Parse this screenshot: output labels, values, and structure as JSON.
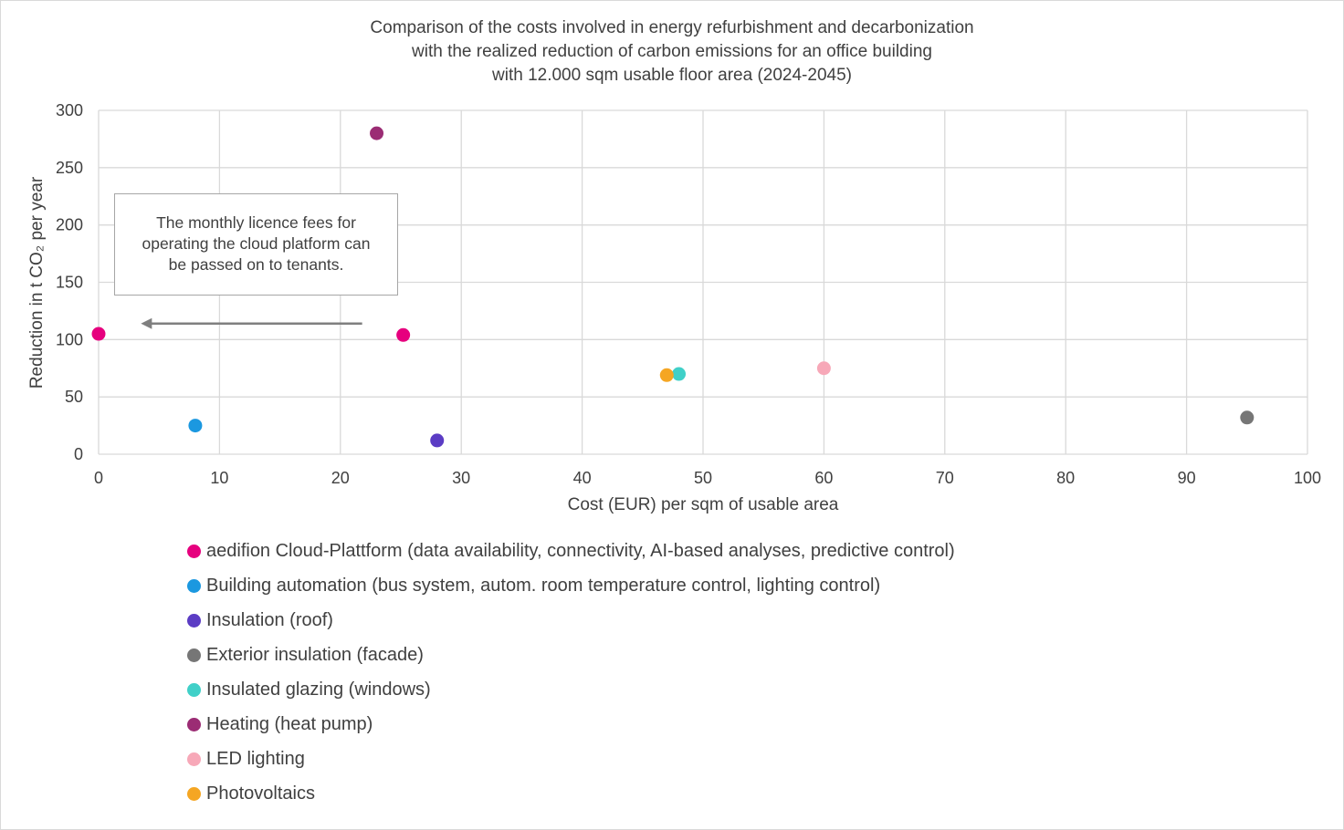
{
  "chart_data": {
    "type": "scatter",
    "title_lines": [
      "Comparison of the costs involved in energy refurbishment and decarbonization",
      "with the realized reduction of carbon emissions for an office building",
      "with 12.000 sqm usable floor area (2024-2045)"
    ],
    "xlabel": "Cost (EUR) per sqm of usable area",
    "ylabel": "Reduction in t CO₂ per year",
    "xlim": [
      0,
      100
    ],
    "ylim": [
      0,
      300
    ],
    "xticks": [
      0,
      10,
      20,
      30,
      40,
      50,
      60,
      70,
      80,
      90,
      100
    ],
    "yticks": [
      0,
      50,
      100,
      150,
      200,
      250,
      300
    ],
    "grid": true,
    "legend_position": "bottom",
    "series": [
      {
        "name": "aedifion Cloud-Plattform (data availability, connectivity, AI-based analyses, predictive control)",
        "color": "#e6007e",
        "points": [
          [
            0,
            105
          ],
          [
            25.2,
            104
          ]
        ]
      },
      {
        "name": "Building automation (bus system, autom. room temperature control, lighting control)",
        "color": "#1b98e0",
        "points": [
          [
            8,
            25
          ]
        ]
      },
      {
        "name": "Insulation (roof)",
        "color": "#5b3cc4",
        "points": [
          [
            28,
            12
          ]
        ]
      },
      {
        "name": "Exterior insulation (facade)",
        "color": "#767676",
        "points": [
          [
            95,
            32
          ]
        ]
      },
      {
        "name": "Insulated glazing (windows)",
        "color": "#40d0c8",
        "points": [
          [
            48,
            70
          ]
        ]
      },
      {
        "name": "Heating (heat pump)",
        "color": "#9b2c74",
        "points": [
          [
            23,
            280
          ]
        ]
      },
      {
        "name": "LED lighting",
        "color": "#f7a8b8",
        "points": [
          [
            60,
            75
          ]
        ]
      },
      {
        "name": "Photovoltaics",
        "color": "#f5a623",
        "points": [
          [
            47,
            69
          ]
        ]
      }
    ],
    "annotation": {
      "lines": [
        "The monthly licence fees for",
        "operating the cloud platform can",
        "be passed on to tenants."
      ],
      "arrow_from": [
        21.8,
        114
      ],
      "arrow_to": [
        3.5,
        114
      ]
    }
  }
}
